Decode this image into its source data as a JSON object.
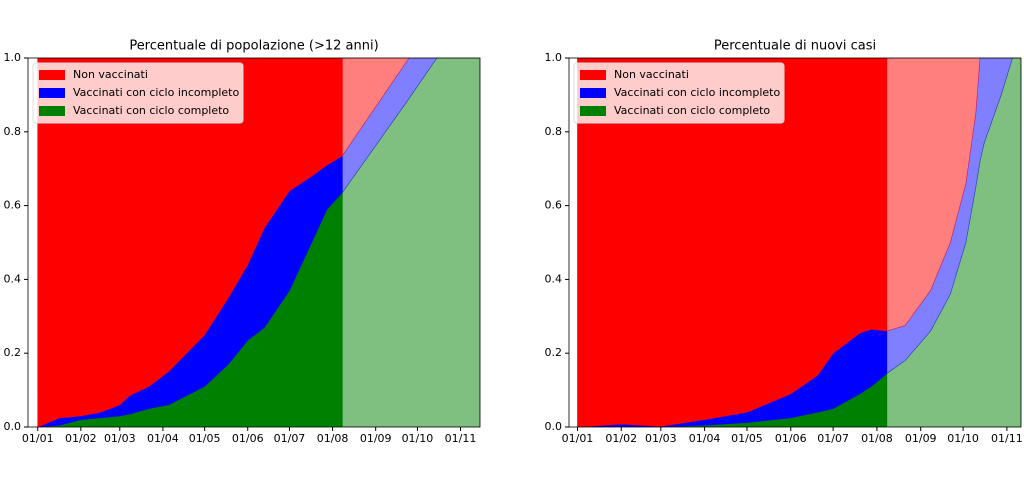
{
  "chart_data": [
    {
      "type": "stacked-area",
      "title": "Percentuale di popolazione (>12 anni)",
      "x": [
        0,
        16,
        31,
        45,
        59,
        66,
        80,
        94,
        120,
        137,
        151,
        163,
        181,
        197,
        208,
        219
      ],
      "projection_x": [
        219,
        267,
        287,
        318
      ],
      "projection_opacity": 0.5,
      "series": [
        {
          "name": "Vaccinati con ciclo completo",
          "color": "#008000",
          "values": [
            0,
            0.005,
            0.02,
            0.025,
            0.03,
            0.035,
            0.05,
            0.06,
            0.11,
            0.17,
            0.235,
            0.27,
            0.37,
            0.5,
            0.59,
            0.635
          ],
          "projection": [
            0.635,
            0.89,
            1.0,
            1.0
          ]
        },
        {
          "name": "Vaccinati con ciclo incompleto",
          "color": "#0000ff",
          "values": [
            0,
            0.02,
            0.01,
            0.015,
            0.03,
            0.05,
            0.06,
            0.09,
            0.14,
            0.18,
            0.205,
            0.27,
            0.27,
            0.18,
            0.12,
            0.1
          ],
          "projection": [
            0.1,
            0.11,
            0,
            0
          ]
        },
        {
          "name": "Non vaccinati",
          "color": "#ff0000",
          "values": [
            1,
            0.975,
            0.97,
            0.96,
            0.94,
            0.915,
            0.89,
            0.85,
            0.75,
            0.65,
            0.56,
            0.46,
            0.36,
            0.32,
            0.29,
            0.265
          ],
          "projection": [
            0.265,
            0,
            0,
            0
          ]
        }
      ],
      "legend": "upper left",
      "xlim": [
        -7,
        318
      ],
      "xticks": [
        {
          "value": 0,
          "label": "01/01"
        },
        {
          "value": 31,
          "label": "01/02"
        },
        {
          "value": 59,
          "label": "01/03"
        },
        {
          "value": 90,
          "label": "01/04"
        },
        {
          "value": 120,
          "label": "01/05"
        },
        {
          "value": 151,
          "label": "01/06"
        },
        {
          "value": 181,
          "label": "01/07"
        },
        {
          "value": 212,
          "label": "01/08"
        },
        {
          "value": 243,
          "label": "01/09"
        },
        {
          "value": 273,
          "label": "01/10"
        },
        {
          "value": 304,
          "label": "01/11"
        }
      ],
      "ylim": [
        0,
        1
      ],
      "yticks": [
        {
          "value": 0,
          "label": "0.0"
        },
        {
          "value": 0.2,
          "label": "0.2"
        },
        {
          "value": 0.4,
          "label": "0.4"
        },
        {
          "value": 0.6,
          "label": "0.6"
        },
        {
          "value": 0.8,
          "label": "0.8"
        },
        {
          "value": 1,
          "label": "1.0"
        }
      ]
    },
    {
      "type": "stacked-area",
      "title": "Percentuale di nuovi casi",
      "x": [
        0,
        31,
        45,
        59,
        90,
        120,
        151,
        170,
        181,
        200,
        208,
        219
      ],
      "projection_x": [
        219,
        232,
        250,
        264,
        275,
        282,
        285,
        288,
        300,
        308,
        314
      ],
      "projection_opacity": 0.5,
      "series": [
        {
          "name": "Vaccinati con ciclo completo",
          "color": "#008000",
          "values": [
            0,
            0,
            0,
            0,
            0.005,
            0.012,
            0.025,
            0.04,
            0.05,
            0.09,
            0.11,
            0.145
          ],
          "projection": [
            0.145,
            0.18,
            0.26,
            0.36,
            0.5,
            0.65,
            0.72,
            0.77,
            0.9,
            1.0,
            1.0
          ]
        },
        {
          "name": "Vaccinati con ciclo incompleto",
          "color": "#0000ff",
          "values": [
            0,
            0.008,
            0.005,
            0.002,
            0.015,
            0.028,
            0.065,
            0.1,
            0.15,
            0.165,
            0.155,
            0.115
          ],
          "projection": [
            0.115,
            0.095,
            0.11,
            0.14,
            0.16,
            0.2,
            0.28,
            0.23,
            0.1,
            0,
            0
          ]
        },
        {
          "name": "Non vaccinati",
          "color": "#ff0000",
          "values": [
            1,
            0.992,
            0.995,
            0.998,
            0.98,
            0.96,
            0.91,
            0.86,
            0.8,
            0.745,
            0.735,
            0.74
          ],
          "projection": [
            0.74,
            0.725,
            0.63,
            0.5,
            0.34,
            0.15,
            0,
            0,
            0,
            0,
            0
          ]
        }
      ],
      "legend": "upper left",
      "xlim": [
        -6,
        314
      ],
      "xticks": [
        {
          "value": 0,
          "label": "01/01"
        },
        {
          "value": 31,
          "label": "01/02"
        },
        {
          "value": 59,
          "label": "01/03"
        },
        {
          "value": 90,
          "label": "01/04"
        },
        {
          "value": 120,
          "label": "01/05"
        },
        {
          "value": 151,
          "label": "01/06"
        },
        {
          "value": 181,
          "label": "01/07"
        },
        {
          "value": 212,
          "label": "01/08"
        },
        {
          "value": 243,
          "label": "01/09"
        },
        {
          "value": 273,
          "label": "01/10"
        },
        {
          "value": 304,
          "label": "01/11"
        }
      ],
      "ylim": [
        0,
        1
      ],
      "yticks": [
        {
          "value": 0,
          "label": "0.0"
        },
        {
          "value": 0.2,
          "label": "0.2"
        },
        {
          "value": 0.4,
          "label": "0.4"
        },
        {
          "value": 0.6,
          "label": "0.6"
        },
        {
          "value": 0.8,
          "label": "0.8"
        },
        {
          "value": 1,
          "label": "1.0"
        }
      ]
    }
  ]
}
